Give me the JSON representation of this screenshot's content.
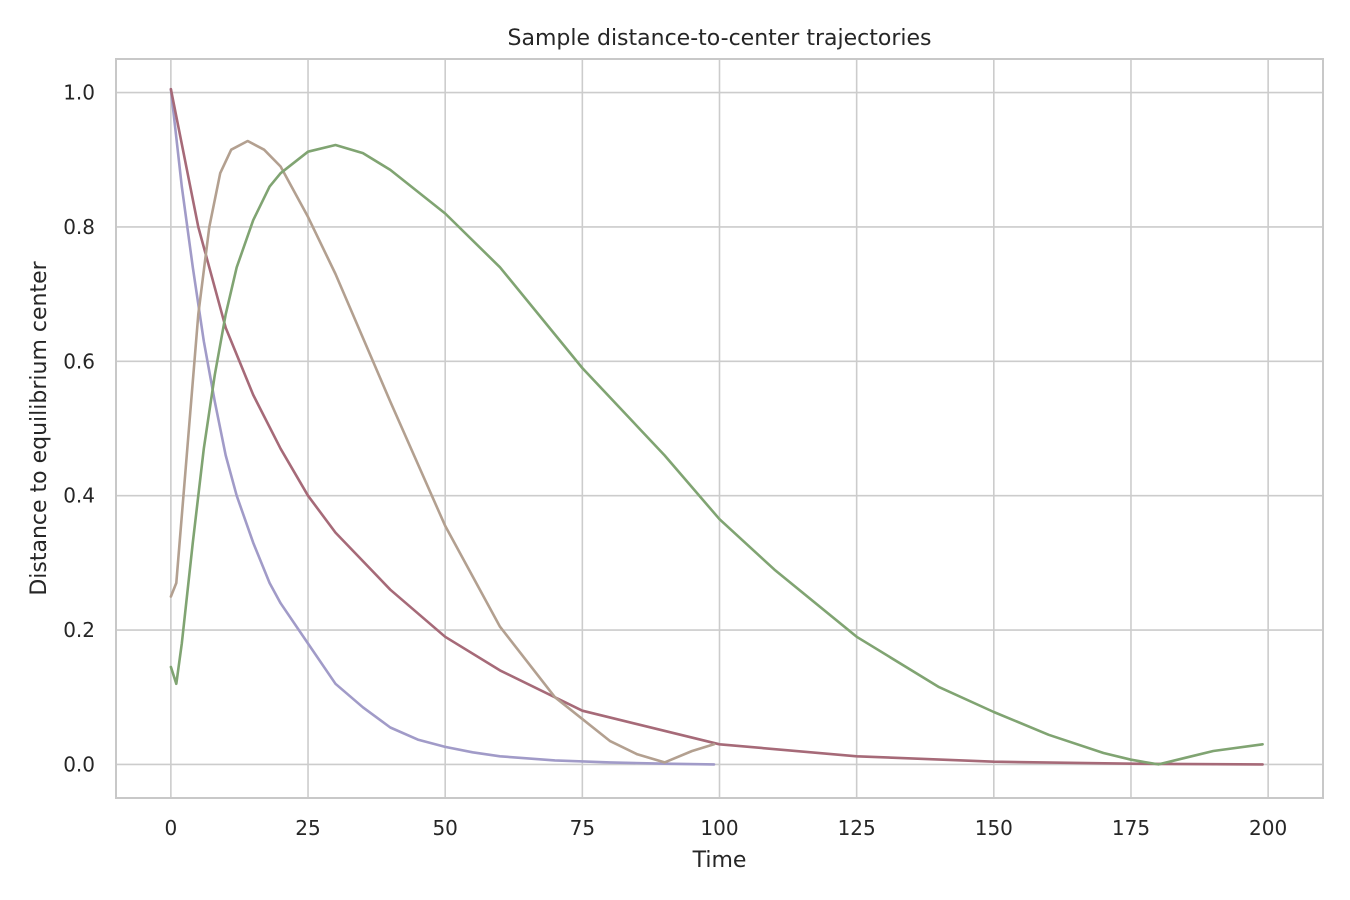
{
  "chart_data": {
    "type": "line",
    "title": "Sample distance-to-center trajectories",
    "xlabel": "Time",
    "ylabel": "Distance to equilibrium center",
    "xlim": [
      -10,
      210
    ],
    "ylim": [
      -0.05,
      1.05
    ],
    "grid": true,
    "xticks": [
      0,
      25,
      50,
      75,
      100,
      125,
      150,
      175,
      200
    ],
    "yticks": [
      0.0,
      0.2,
      0.4,
      0.6,
      0.8,
      1.0
    ],
    "xtick_labels": [
      "0",
      "25",
      "50",
      "75",
      "100",
      "125",
      "150",
      "175",
      "200"
    ],
    "ytick_labels": [
      "0.0",
      "0.2",
      "0.4",
      "0.6",
      "0.8",
      "1.0"
    ],
    "series": [
      {
        "color": "#a19bc8",
        "x": [
          0,
          2,
          4,
          6,
          8,
          10,
          12,
          15,
          18,
          20,
          25,
          30,
          35,
          40,
          45,
          50,
          55,
          60,
          70,
          80,
          90,
          99
        ],
        "y": [
          1.005,
          0.86,
          0.74,
          0.63,
          0.54,
          0.46,
          0.4,
          0.33,
          0.27,
          0.24,
          0.18,
          0.12,
          0.085,
          0.055,
          0.037,
          0.026,
          0.018,
          0.012,
          0.006,
          0.003,
          0.001,
          0.0
        ]
      },
      {
        "color": "#a66a78",
        "x": [
          0,
          5,
          10,
          15,
          20,
          25,
          30,
          40,
          50,
          60,
          75,
          100,
          125,
          150,
          175,
          199
        ],
        "y": [
          1.005,
          0.8,
          0.65,
          0.55,
          0.47,
          0.4,
          0.345,
          0.26,
          0.19,
          0.14,
          0.08,
          0.03,
          0.012,
          0.004,
          0.001,
          0.0
        ]
      },
      {
        "color": "#b3a090",
        "x": [
          0,
          1,
          3,
          5,
          7,
          9,
          11,
          14,
          17,
          20,
          25,
          30,
          40,
          50,
          60,
          70,
          80,
          85,
          90,
          95,
          99
        ],
        "y": [
          0.25,
          0.27,
          0.47,
          0.67,
          0.8,
          0.88,
          0.915,
          0.928,
          0.915,
          0.89,
          0.815,
          0.73,
          0.54,
          0.355,
          0.205,
          0.1,
          0.035,
          0.015,
          0.003,
          0.02,
          0.03
        ]
      },
      {
        "color": "#80a472",
        "x": [
          0,
          1,
          2,
          4,
          6,
          8,
          10,
          12,
          15,
          18,
          20,
          25,
          30,
          35,
          40,
          50,
          60,
          75,
          90,
          100,
          110,
          125,
          140,
          150,
          160,
          170,
          175,
          180,
          185,
          190,
          199
        ],
        "y": [
          0.145,
          0.12,
          0.18,
          0.33,
          0.47,
          0.58,
          0.67,
          0.74,
          0.81,
          0.86,
          0.88,
          0.912,
          0.922,
          0.91,
          0.885,
          0.82,
          0.74,
          0.59,
          0.46,
          0.365,
          0.29,
          0.19,
          0.115,
          0.078,
          0.044,
          0.017,
          0.007,
          0.0,
          0.01,
          0.02,
          0.03
        ]
      }
    ]
  }
}
